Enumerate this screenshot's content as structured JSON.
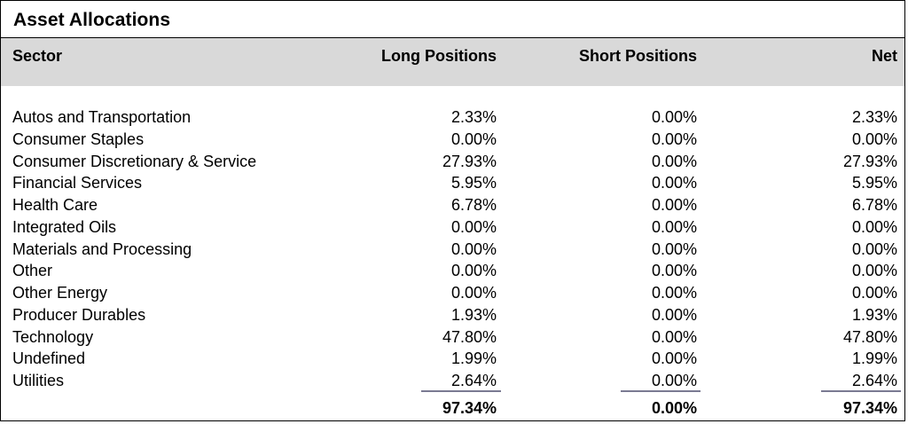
{
  "title": "Asset Allocations",
  "header": {
    "sector": "Sector",
    "long": "Long Positions",
    "short": "Short Positions",
    "net": "Net"
  },
  "rows": [
    {
      "sector": "Autos and Transportation",
      "long": "2.33%",
      "short": "0.00%",
      "net": "2.33%"
    },
    {
      "sector": "Consumer Staples",
      "long": "0.00%",
      "short": "0.00%",
      "net": "0.00%"
    },
    {
      "sector": "Consumer Discretionary & Service",
      "long": "27.93%",
      "short": "0.00%",
      "net": "27.93%"
    },
    {
      "sector": "Financial Services",
      "long": "5.95%",
      "short": "0.00%",
      "net": "5.95%"
    },
    {
      "sector": "Health Care",
      "long": "6.78%",
      "short": "0.00%",
      "net": "6.78%"
    },
    {
      "sector": "Integrated Oils",
      "long": "0.00%",
      "short": "0.00%",
      "net": "0.00%"
    },
    {
      "sector": "Materials and Processing",
      "long": "0.00%",
      "short": "0.00%",
      "net": "0.00%"
    },
    {
      "sector": "Other",
      "long": "0.00%",
      "short": "0.00%",
      "net": "0.00%"
    },
    {
      "sector": "Other Energy",
      "long": "0.00%",
      "short": "0.00%",
      "net": "0.00%"
    },
    {
      "sector": "Producer Durables",
      "long": "1.93%",
      "short": "0.00%",
      "net": "1.93%"
    },
    {
      "sector": "Technology",
      "long": "47.80%",
      "short": "0.00%",
      "net": "47.80%"
    },
    {
      "sector": "Undefined",
      "long": "1.99%",
      "short": "0.00%",
      "net": "1.99%"
    },
    {
      "sector": "Utilities",
      "long": "2.64%",
      "short": "0.00%",
      "net": "2.64%"
    }
  ],
  "totals": {
    "long": "97.34%",
    "short": "0.00%",
    "net": "97.34%"
  }
}
